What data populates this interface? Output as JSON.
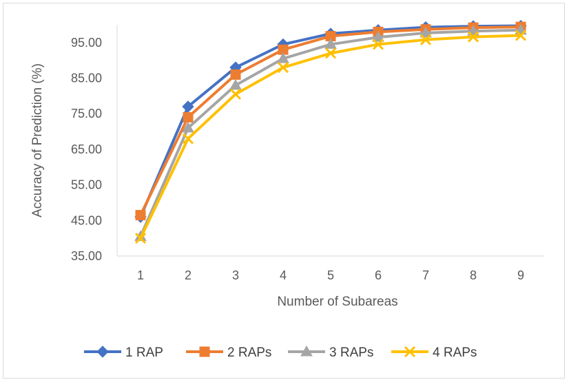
{
  "chart_data": {
    "type": "line",
    "title": "",
    "xlabel": "Number of Subareas",
    "ylabel": "Accuracy of Prediction (%)",
    "categories": [
      "1",
      "2",
      "3",
      "4",
      "5",
      "6",
      "7",
      "8",
      "9"
    ],
    "ylim": [
      35,
      100
    ],
    "yticks": [
      "35.00",
      "45.00",
      "55.00",
      "65.00",
      "75.00",
      "85.00",
      "95.00"
    ],
    "ytick_values": [
      35,
      45,
      55,
      65,
      75,
      85,
      95
    ],
    "grid": false,
    "legend_position": "bottom",
    "series": [
      {
        "name": "1 RAP",
        "color": "#4472C4",
        "marker": "diamond",
        "values": [
          46.0,
          77.0,
          88.0,
          94.5,
          97.5,
          98.5,
          99.3,
          99.6,
          99.7
        ]
      },
      {
        "name": "2 RAPs",
        "color": "#ED7D31",
        "marker": "square",
        "values": [
          46.5,
          74.0,
          86.0,
          93.0,
          96.8,
          98.0,
          98.7,
          99.2,
          99.4
        ]
      },
      {
        "name": "3 RAPs",
        "color": "#A5A5A5",
        "marker": "triangle",
        "values": [
          40.5,
          71.0,
          83.0,
          90.5,
          94.5,
          96.5,
          97.7,
          98.2,
          98.5
        ]
      },
      {
        "name": "4 RAPs",
        "color": "#FFC000",
        "marker": "x",
        "values": [
          40.0,
          68.0,
          80.5,
          88.0,
          92.0,
          94.5,
          95.8,
          96.6,
          97.0
        ]
      }
    ]
  }
}
